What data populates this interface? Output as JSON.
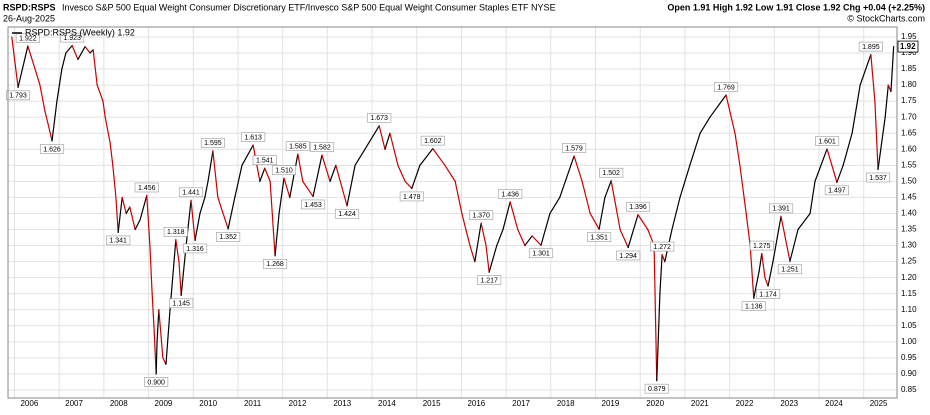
{
  "chart_data": {
    "type": "line",
    "symbol": "RSPD:RSPS",
    "title": "Invesco S&P 500 Equal Weight Consumer Discretionary ETF/Invesco S&P 500 Equal Weight Consumer Staples ETF  NYSE",
    "date": "26-Aug-2025",
    "quote": "Open 1.91  High 1.92  Low 1.91  Close 1.92  Chg +0.04 (+2.25%)",
    "copyright": "© StockCharts.com",
    "legend": "RSPD:RSPS (Weekly) 1.92",
    "up_color": "#000000",
    "down_color": "#cc0000",
    "grid": true,
    "xlim": [
      2005.9,
      2025.7
    ],
    "xticks": [
      2006,
      2007,
      2008,
      2009,
      2010,
      2011,
      2012,
      2013,
      2014,
      2015,
      2016,
      2017,
      2018,
      2019,
      2020,
      2021,
      2022,
      2023,
      2024,
      2025
    ],
    "ylim": [
      0.825,
      1.981
    ],
    "yticks": [
      0.85,
      {
        "value": 0.9,
        "label": "0.90"
      },
      0.95,
      {
        "value": 1.0,
        "label": "1.00"
      },
      1.05,
      {
        "value": 1.1,
        "label": "1.10"
      },
      1.15,
      {
        "value": 1.2,
        "label": "1.20"
      },
      1.25,
      {
        "value": 1.3,
        "label": "1.30"
      },
      1.35,
      {
        "value": 1.4,
        "label": "1.40"
      },
      1.45,
      {
        "value": 1.5,
        "label": "1.50"
      },
      1.55,
      {
        "value": 1.6,
        "label": "1.60"
      },
      1.65,
      {
        "value": 1.7,
        "label": "1.70"
      },
      1.75,
      {
        "value": 1.8,
        "label": "1.80"
      },
      1.85,
      {
        "value": 1.9,
        "label": "1.90"
      },
      1.95
    ],
    "x": [
      2005.94,
      2006.08,
      2006.3,
      2006.46,
      2006.57,
      2006.68,
      2006.75,
      2006.84,
      2006.95,
      2007.06,
      2007.15,
      2007.29,
      2007.42,
      2007.58,
      2007.69,
      2007.76,
      2007.85,
      2007.98,
      2008.03,
      2008.14,
      2008.2,
      2008.27,
      2008.32,
      2008.41,
      2008.5,
      2008.58,
      2008.7,
      2008.81,
      2008.96,
      2009.03,
      2009.08,
      2009.12,
      2009.17,
      2009.19,
      2009.23,
      2009.32,
      2009.39,
      2009.48,
      2009.57,
      2009.61,
      2009.68,
      2009.73,
      2009.84,
      2009.95,
      2010.04,
      2010.15,
      2010.26,
      2010.33,
      2010.44,
      2010.55,
      2010.78,
      2010.93,
      2011.09,
      2011.34,
      2011.49,
      2011.6,
      2011.72,
      2011.83,
      2011.92,
      2012.03,
      2012.16,
      2012.34,
      2012.45,
      2012.68,
      2012.88,
      2013.06,
      2013.19,
      2013.44,
      2013.62,
      2013.84,
      2014.16,
      2014.29,
      2014.4,
      2014.58,
      2014.74,
      2014.89,
      2015.07,
      2015.36,
      2015.63,
      2015.86,
      2016.01,
      2016.19,
      2016.3,
      2016.44,
      2016.55,
      2016.62,
      2016.79,
      2016.93,
      2017.09,
      2017.26,
      2017.42,
      2017.58,
      2017.78,
      2017.98,
      2018.2,
      2018.52,
      2018.7,
      2018.88,
      2019.08,
      2019.21,
      2019.35,
      2019.55,
      2019.73,
      2019.95,
      2020.17,
      2020.31,
      2020.37,
      2020.44,
      2020.49,
      2020.55,
      2020.71,
      2020.89,
      2021.11,
      2021.34,
      2021.56,
      2021.92,
      2022.12,
      2022.23,
      2022.37,
      2022.46,
      2022.54,
      2022.66,
      2022.72,
      2022.79,
      2022.86,
      2022.97,
      2023.15,
      2023.35,
      2023.53,
      2023.8,
      2023.91,
      2024.18,
      2024.4,
      2024.54,
      2024.74,
      2024.92,
      2025.16,
      2025.25,
      2025.32,
      2025.48,
      2025.55,
      2025.61,
      2025.67
    ],
    "values": [
      1.95,
      1.793,
      1.922,
      1.85,
      1.8,
      1.72,
      1.68,
      1.626,
      1.75,
      1.85,
      1.9,
      1.923,
      1.88,
      1.92,
      1.9,
      1.91,
      1.8,
      1.75,
      1.7,
      1.62,
      1.55,
      1.45,
      1.341,
      1.45,
      1.4,
      1.42,
      1.35,
      1.38,
      1.456,
      1.3,
      1.15,
      1.05,
      0.9,
      1.0,
      1.1,
      0.95,
      0.93,
      1.1,
      1.25,
      1.318,
      1.25,
      1.145,
      1.3,
      1.441,
      1.316,
      1.4,
      1.45,
      1.5,
      1.595,
      1.45,
      1.352,
      1.45,
      1.55,
      1.613,
      1.5,
      1.541,
      1.5,
      1.268,
      1.4,
      1.51,
      1.45,
      1.585,
      1.5,
      1.453,
      1.582,
      1.5,
      1.55,
      1.424,
      1.55,
      1.6,
      1.673,
      1.6,
      1.65,
      1.55,
      1.5,
      1.478,
      1.55,
      1.602,
      1.55,
      1.5,
      1.4,
      1.3,
      1.25,
      1.37,
      1.3,
      1.217,
      1.3,
      1.35,
      1.436,
      1.35,
      1.3,
      1.33,
      1.301,
      1.4,
      1.45,
      1.579,
      1.5,
      1.4,
      1.351,
      1.45,
      1.502,
      1.35,
      1.294,
      1.396,
      1.35,
      1.3,
      0.879,
      1.15,
      1.272,
      1.25,
      1.35,
      1.45,
      1.55,
      1.65,
      1.7,
      1.769,
      1.65,
      1.55,
      1.4,
      1.3,
      1.136,
      1.22,
      1.275,
      1.2,
      1.174,
      1.25,
      1.391,
      1.251,
      1.35,
      1.4,
      1.5,
      1.601,
      1.497,
      1.55,
      1.65,
      1.8,
      1.895,
      1.75,
      1.537,
      1.7,
      1.8,
      1.78,
      1.92
    ],
    "value_labels": [
      null,
      "1.793",
      "1.922",
      null,
      null,
      null,
      null,
      "1.626",
      null,
      null,
      null,
      "1.923",
      null,
      null,
      null,
      null,
      null,
      null,
      null,
      null,
      null,
      null,
      "1.341",
      null,
      null,
      null,
      null,
      null,
      "1.456",
      null,
      null,
      null,
      "0.900",
      null,
      null,
      null,
      null,
      null,
      null,
      "1.318",
      null,
      "1.145",
      null,
      "1.441",
      "1.316",
      null,
      null,
      null,
      "1.595",
      null,
      "1.352",
      null,
      null,
      "1.613",
      null,
      "1.541",
      null,
      "1.268",
      null,
      "1.510",
      null,
      "1.585",
      null,
      "1.453",
      "1.582",
      null,
      null,
      "1.424",
      null,
      null,
      "1.673",
      null,
      null,
      null,
      null,
      "1.478",
      null,
      "1.602",
      null,
      null,
      null,
      null,
      null,
      "1.370",
      null,
      "1.217",
      null,
      null,
      "1.436",
      null,
      null,
      null,
      "1.301",
      null,
      null,
      "1.579",
      null,
      null,
      "1.351",
      null,
      "1.502",
      null,
      "1.294",
      "1.396",
      null,
      null,
      "0.879",
      null,
      "1.272",
      null,
      null,
      null,
      null,
      null,
      null,
      "1.769",
      null,
      null,
      null,
      null,
      "1.136",
      null,
      "1.275",
      null,
      "1.174",
      null,
      "1.391",
      "1.251",
      null,
      null,
      null,
      "1.601",
      "1.497",
      null,
      null,
      null,
      "1.895",
      null,
      "1.537",
      null,
      null,
      null,
      null
    ]
  }
}
